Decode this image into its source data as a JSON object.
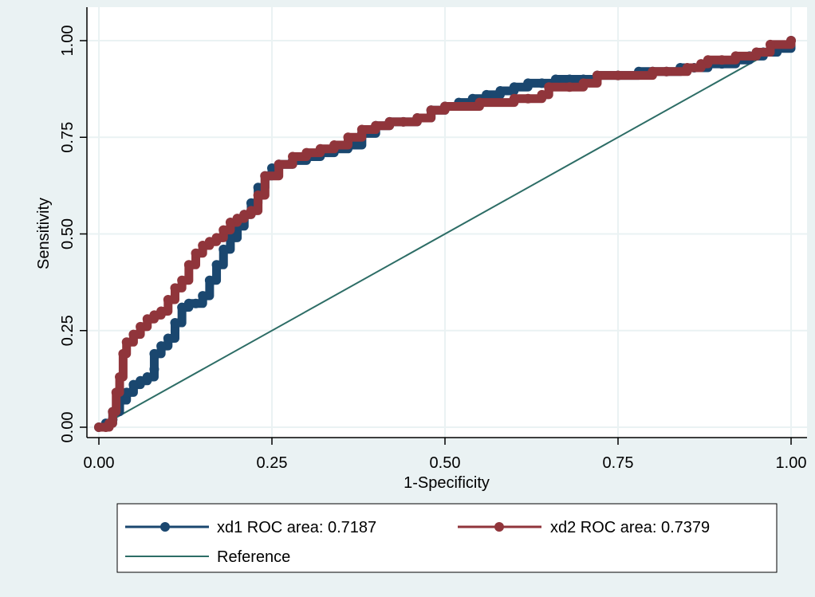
{
  "chart_data": {
    "type": "line",
    "title": "",
    "xlabel": "1-Specificity",
    "ylabel": "Sensitivity",
    "xlim": [
      0,
      1
    ],
    "ylim": [
      0,
      1
    ],
    "xticks": [
      "0.00",
      "0.25",
      "0.50",
      "0.75",
      "1.00"
    ],
    "yticks": [
      "0.00",
      "0.25",
      "0.50",
      "0.75",
      "1.00"
    ],
    "grid": true,
    "legend_position": "bottom",
    "colors": {
      "outer_background": "#EAF2F3",
      "plot_background": "#FFFFFF",
      "grid": "#EAF2F3",
      "xd1": "#1A476F",
      "xd2": "#90353B",
      "reference": "#2D6D66"
    },
    "series": [
      {
        "name": "xd1 ROC area: 0.7187",
        "marker": "circle",
        "x": [
          0.0,
          0.01,
          0.02,
          0.02,
          0.03,
          0.04,
          0.05,
          0.06,
          0.07,
          0.08,
          0.08,
          0.09,
          0.1,
          0.11,
          0.12,
          0.13,
          0.14,
          0.15,
          0.16,
          0.17,
          0.18,
          0.19,
          0.2,
          0.21,
          0.22,
          0.23,
          0.24,
          0.25,
          0.26,
          0.28,
          0.3,
          0.32,
          0.34,
          0.36,
          0.38,
          0.4,
          0.42,
          0.44,
          0.46,
          0.48,
          0.5,
          0.52,
          0.54,
          0.56,
          0.58,
          0.6,
          0.62,
          0.64,
          0.66,
          0.68,
          0.7,
          0.72,
          0.75,
          0.78,
          0.8,
          0.82,
          0.84,
          0.86,
          0.88,
          0.9,
          0.92,
          0.94,
          0.96,
          0.98,
          1.0
        ],
        "y": [
          0.0,
          0.01,
          0.02,
          0.04,
          0.07,
          0.09,
          0.11,
          0.12,
          0.13,
          0.15,
          0.19,
          0.21,
          0.23,
          0.27,
          0.31,
          0.32,
          0.32,
          0.34,
          0.38,
          0.42,
          0.46,
          0.49,
          0.52,
          0.55,
          0.58,
          0.62,
          0.65,
          0.67,
          0.68,
          0.69,
          0.7,
          0.71,
          0.72,
          0.73,
          0.76,
          0.78,
          0.79,
          0.79,
          0.8,
          0.82,
          0.83,
          0.84,
          0.85,
          0.86,
          0.87,
          0.88,
          0.89,
          0.89,
          0.9,
          0.9,
          0.9,
          0.91,
          0.91,
          0.92,
          0.92,
          0.92,
          0.93,
          0.93,
          0.94,
          0.94,
          0.95,
          0.96,
          0.97,
          0.98,
          1.0
        ]
      },
      {
        "name": "xd2 ROC area: 0.7379",
        "marker": "circle",
        "x": [
          0.0,
          0.01,
          0.015,
          0.02,
          0.025,
          0.03,
          0.035,
          0.04,
          0.05,
          0.06,
          0.07,
          0.08,
          0.09,
          0.1,
          0.11,
          0.12,
          0.13,
          0.14,
          0.15,
          0.16,
          0.17,
          0.18,
          0.19,
          0.2,
          0.21,
          0.22,
          0.23,
          0.24,
          0.26,
          0.28,
          0.3,
          0.32,
          0.34,
          0.36,
          0.38,
          0.4,
          0.42,
          0.44,
          0.46,
          0.48,
          0.5,
          0.55,
          0.6,
          0.62,
          0.64,
          0.65,
          0.68,
          0.7,
          0.72,
          0.75,
          0.8,
          0.82,
          0.85,
          0.87,
          0.88,
          0.9,
          0.92,
          0.95,
          0.97,
          1.0
        ],
        "y": [
          0.0,
          0.0,
          0.01,
          0.04,
          0.09,
          0.13,
          0.19,
          0.22,
          0.24,
          0.26,
          0.28,
          0.29,
          0.3,
          0.33,
          0.36,
          0.38,
          0.42,
          0.45,
          0.47,
          0.48,
          0.49,
          0.51,
          0.53,
          0.54,
          0.55,
          0.56,
          0.6,
          0.65,
          0.68,
          0.7,
          0.71,
          0.72,
          0.73,
          0.75,
          0.77,
          0.78,
          0.79,
          0.79,
          0.8,
          0.82,
          0.83,
          0.84,
          0.85,
          0.85,
          0.86,
          0.88,
          0.88,
          0.89,
          0.91,
          0.91,
          0.92,
          0.92,
          0.93,
          0.94,
          0.95,
          0.95,
          0.96,
          0.97,
          0.99,
          1.0
        ]
      },
      {
        "name": "Reference",
        "marker": "none",
        "x": [
          0,
          1
        ],
        "y": [
          0,
          1
        ]
      }
    ]
  }
}
